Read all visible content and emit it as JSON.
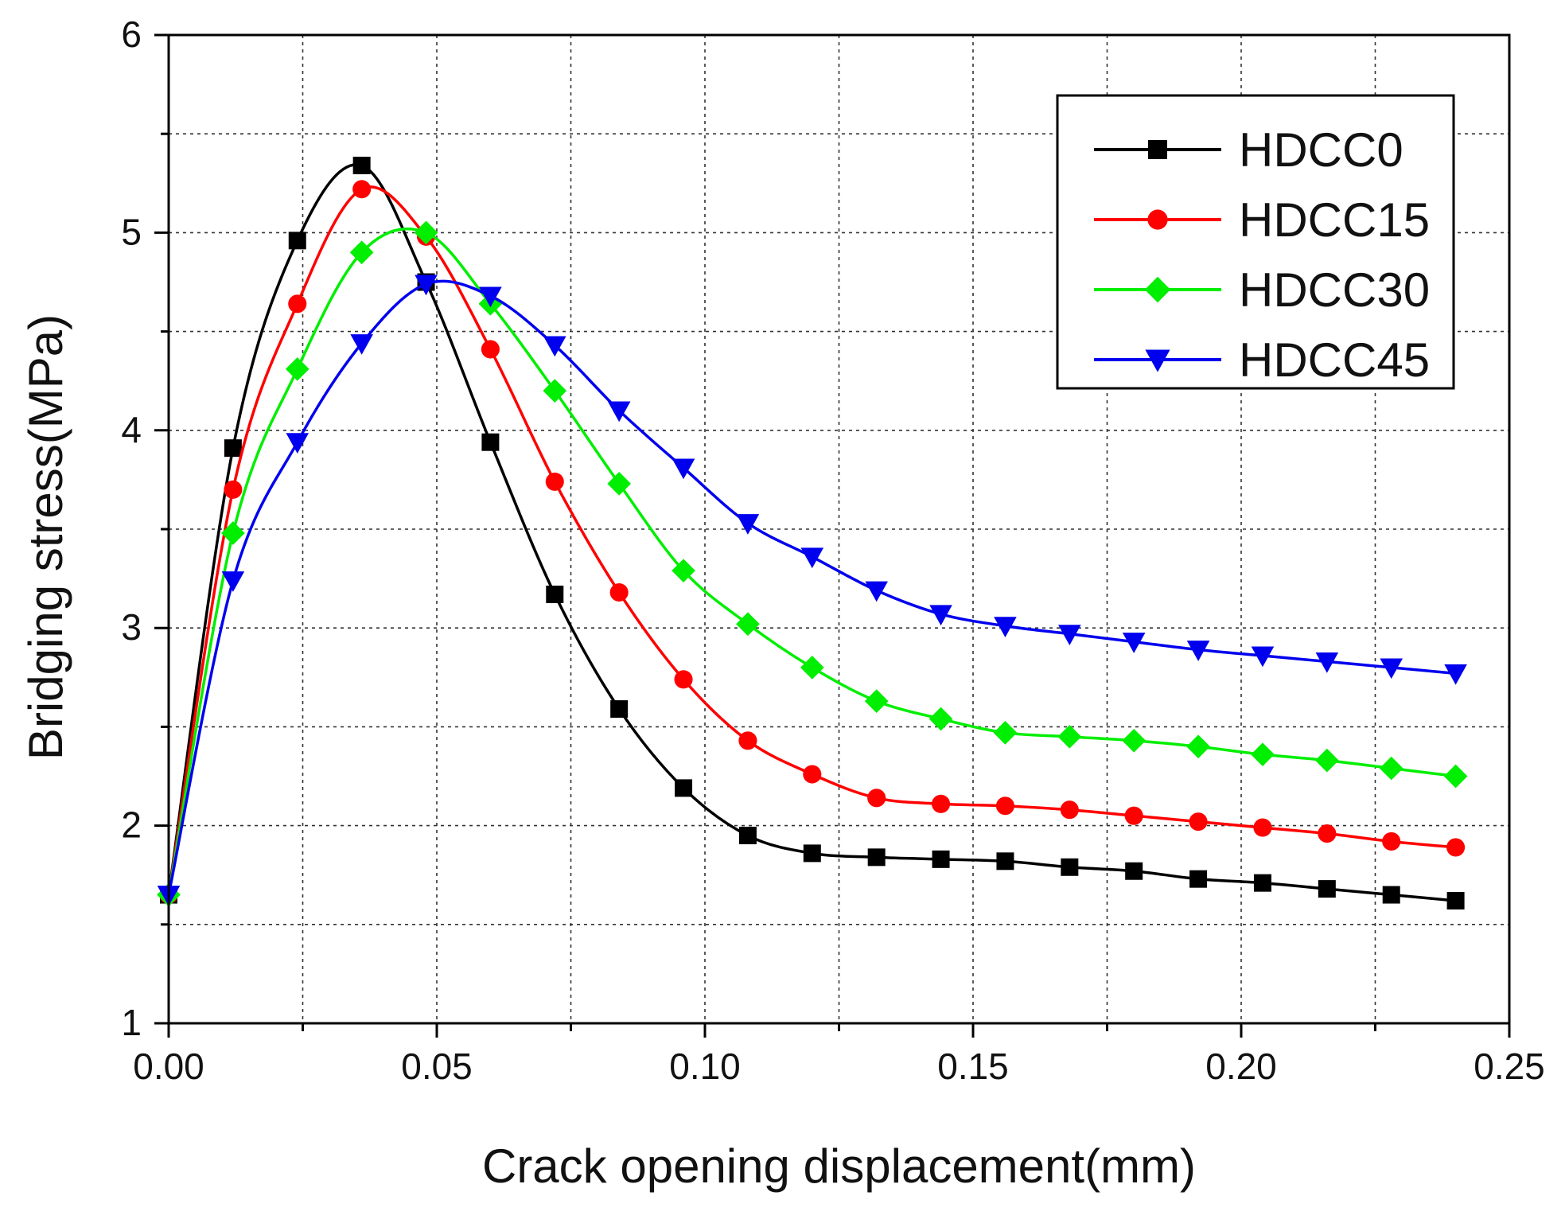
{
  "chart_data": {
    "type": "line",
    "title": "",
    "xlabel": "Crack opening displacement(mm)",
    "ylabel": "Bridging stress(MPa)",
    "xlim": [
      0,
      0.25
    ],
    "ylim": [
      1,
      6
    ],
    "x_ticks": [
      0.0,
      0.05,
      0.1,
      0.15,
      0.2,
      0.25
    ],
    "x_tick_labels": [
      "0.00",
      "0.05",
      "0.10",
      "0.15",
      "0.20",
      "0.25"
    ],
    "y_ticks": [
      1,
      2,
      3,
      4,
      5,
      6
    ],
    "y_tick_labels": [
      "1",
      "2",
      "3",
      "4",
      "5",
      "6"
    ],
    "grid": true,
    "legend_position": "top-right",
    "series": [
      {
        "name": "HDCC0",
        "color": "#000000",
        "marker": "square",
        "x": [
          0.0,
          0.012,
          0.024,
          0.036,
          0.048,
          0.06,
          0.072,
          0.084,
          0.096,
          0.108,
          0.12,
          0.132,
          0.144,
          0.156,
          0.168,
          0.18,
          0.192,
          0.204,
          0.216,
          0.228,
          0.24
        ],
        "values": [
          1.65,
          3.91,
          4.96,
          5.34,
          4.75,
          3.94,
          3.17,
          2.59,
          2.19,
          1.95,
          1.86,
          1.84,
          1.83,
          1.82,
          1.79,
          1.77,
          1.73,
          1.71,
          1.68,
          1.65,
          1.62
        ]
      },
      {
        "name": "HDCC15",
        "color": "#ff0000",
        "marker": "circle",
        "x": [
          0.0,
          0.012,
          0.024,
          0.036,
          0.048,
          0.06,
          0.072,
          0.084,
          0.096,
          0.108,
          0.12,
          0.132,
          0.144,
          0.156,
          0.168,
          0.18,
          0.192,
          0.204,
          0.216,
          0.228,
          0.24
        ],
        "values": [
          1.65,
          3.7,
          4.64,
          5.22,
          4.98,
          4.41,
          3.74,
          3.18,
          2.74,
          2.43,
          2.26,
          2.14,
          2.11,
          2.1,
          2.08,
          2.05,
          2.02,
          1.99,
          1.96,
          1.92,
          1.89
        ]
      },
      {
        "name": "HDCC30",
        "color": "#00ee00",
        "marker": "diamond",
        "x": [
          0.0,
          0.012,
          0.024,
          0.036,
          0.048,
          0.06,
          0.072,
          0.084,
          0.096,
          0.108,
          0.12,
          0.132,
          0.144,
          0.156,
          0.168,
          0.18,
          0.192,
          0.204,
          0.216,
          0.228,
          0.24
        ],
        "values": [
          1.65,
          3.48,
          4.31,
          4.9,
          5.0,
          4.64,
          4.2,
          3.73,
          3.29,
          3.02,
          2.8,
          2.63,
          2.54,
          2.47,
          2.45,
          2.43,
          2.4,
          2.36,
          2.33,
          2.29,
          2.25
        ]
      },
      {
        "name": "HDCC45",
        "color": "#0000ee",
        "marker": "triangle-down",
        "x": [
          0.0,
          0.012,
          0.024,
          0.036,
          0.048,
          0.06,
          0.072,
          0.084,
          0.096,
          0.108,
          0.12,
          0.132,
          0.144,
          0.156,
          0.168,
          0.18,
          0.192,
          0.204,
          0.216,
          0.228,
          0.24
        ],
        "values": [
          1.65,
          3.24,
          3.94,
          4.44,
          4.74,
          4.68,
          4.43,
          4.1,
          3.81,
          3.53,
          3.36,
          3.19,
          3.07,
          3.01,
          2.97,
          2.93,
          2.89,
          2.86,
          2.83,
          2.8,
          2.77
        ]
      }
    ]
  }
}
